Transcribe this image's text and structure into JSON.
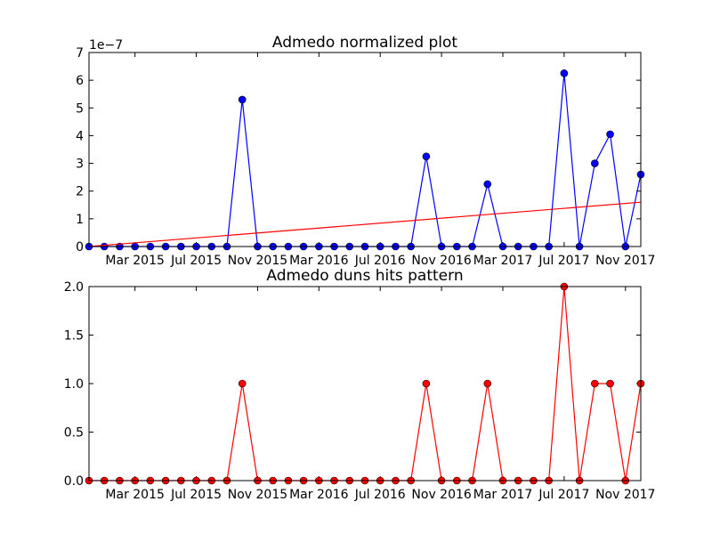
{
  "colors": {
    "blue_series": "#0000ff",
    "red_series": "#ff0000",
    "blue_marker": "#0000ff",
    "red_marker": "#ff0000"
  },
  "chart_data": [
    {
      "type": "line",
      "title": "Admedo normalized plot",
      "offset_label": "1e−7",
      "xlabel": "",
      "ylabel": "",
      "x": [
        "2014-12",
        "2015-01",
        "2015-02",
        "2015-03",
        "2015-04",
        "2015-05",
        "2015-06",
        "2015-07",
        "2015-08",
        "2015-09",
        "2015-10",
        "2015-11",
        "2015-12",
        "2016-01",
        "2016-02",
        "2016-03",
        "2016-04",
        "2016-05",
        "2016-06",
        "2016-07",
        "2016-08",
        "2016-09",
        "2016-10",
        "2016-11",
        "2016-12",
        "2017-01",
        "2017-02",
        "2017-03",
        "2017-04",
        "2017-05",
        "2017-06",
        "2017-07",
        "2017-08",
        "2017-09",
        "2017-10",
        "2017-11",
        "2017-12"
      ],
      "x_tick_labels": [
        "Mar 2015",
        "Jul 2015",
        "Nov 2015",
        "Mar 2016",
        "Jul 2016",
        "Nov 2016",
        "Mar 2017",
        "Jul 2017",
        "Nov 2017"
      ],
      "x_tick_dates": [
        "2015-03",
        "2015-07",
        "2015-11",
        "2016-03",
        "2016-07",
        "2016-11",
        "2017-03",
        "2017-07",
        "2017-11"
      ],
      "y_tick_labels": [
        "0",
        "1",
        "2",
        "3",
        "4",
        "5",
        "6",
        "7"
      ],
      "ylim": [
        0,
        7e-07
      ],
      "grid": false,
      "series": [
        {
          "name": "",
          "color": "#0000ff",
          "marker": "circle",
          "values": [
            0,
            0,
            0,
            0,
            0,
            0,
            0,
            0,
            0,
            0,
            5.3e-07,
            0,
            0,
            0,
            0,
            0,
            0,
            0,
            0,
            0,
            0,
            0,
            3.25e-07,
            0,
            0,
            0,
            2.25e-07,
            0,
            0,
            0,
            0,
            6.25e-07,
            0,
            3e-07,
            4.05e-07,
            0,
            2.6e-07
          ]
        },
        {
          "name": "",
          "color": "#ff0000",
          "marker": "none",
          "trend": true,
          "values_endpoints": [
            0,
            1.6e-07
          ]
        }
      ]
    },
    {
      "type": "line",
      "title": "Admedo duns hits pattern",
      "xlabel": "",
      "ylabel": "",
      "x": [
        "2014-12",
        "2015-01",
        "2015-02",
        "2015-03",
        "2015-04",
        "2015-05",
        "2015-06",
        "2015-07",
        "2015-08",
        "2015-09",
        "2015-10",
        "2015-11",
        "2015-12",
        "2016-01",
        "2016-02",
        "2016-03",
        "2016-04",
        "2016-05",
        "2016-06",
        "2016-07",
        "2016-08",
        "2016-09",
        "2016-10",
        "2016-11",
        "2016-12",
        "2017-01",
        "2017-02",
        "2017-03",
        "2017-04",
        "2017-05",
        "2017-06",
        "2017-07",
        "2017-08",
        "2017-09",
        "2017-10",
        "2017-11",
        "2017-12"
      ],
      "x_tick_labels": [
        "Mar 2015",
        "Jul 2015",
        "Nov 2015",
        "Mar 2016",
        "Jul 2016",
        "Nov 2016",
        "Mar 2017",
        "Jul 2017",
        "Nov 2017"
      ],
      "x_tick_dates": [
        "2015-03",
        "2015-07",
        "2015-11",
        "2016-03",
        "2016-07",
        "2016-11",
        "2017-03",
        "2017-07",
        "2017-11"
      ],
      "y_tick_labels": [
        "0.0",
        "0.5",
        "1.0",
        "1.5",
        "2.0"
      ],
      "ylim": [
        0,
        2
      ],
      "grid": false,
      "series": [
        {
          "name": "",
          "color": "#ff0000",
          "marker": "circle",
          "values": [
            0,
            0,
            0,
            0,
            0,
            0,
            0,
            0,
            0,
            0,
            1,
            0,
            0,
            0,
            0,
            0,
            0,
            0,
            0,
            0,
            0,
            0,
            1,
            0,
            0,
            0,
            1,
            0,
            0,
            0,
            0,
            2,
            0,
            1,
            1,
            0,
            1
          ]
        }
      ]
    }
  ]
}
